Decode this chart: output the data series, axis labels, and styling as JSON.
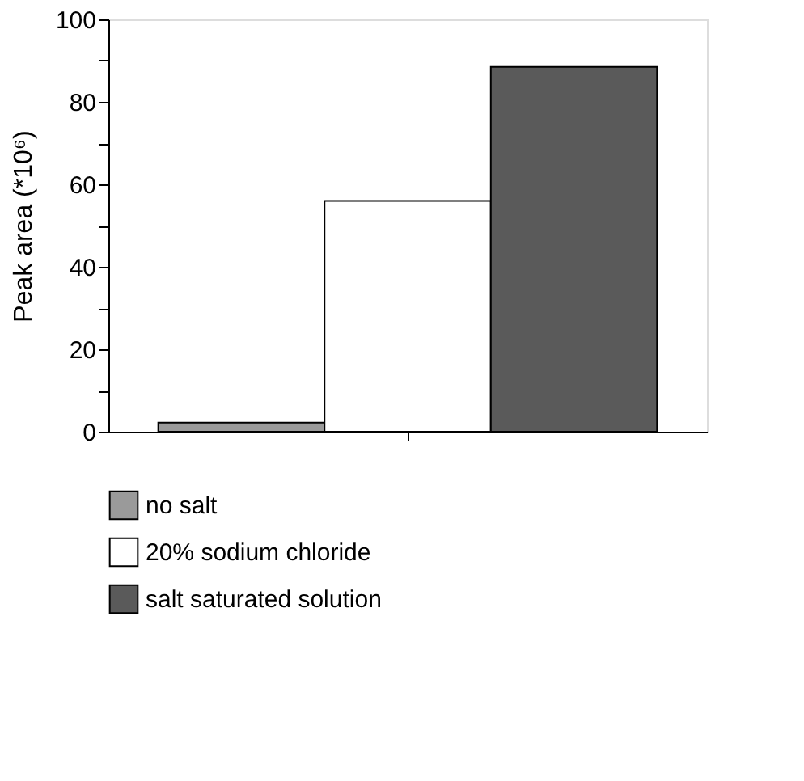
{
  "chart_data": {
    "type": "bar",
    "ylabel": "Peak area (*10⁶)",
    "categories": [
      null
    ],
    "series": [
      {
        "name": "no salt",
        "color": "#9a9a9a",
        "values": [
          2.2
        ]
      },
      {
        "name": "20% sodium chloride",
        "color": "#ffffff",
        "values": [
          56
        ]
      },
      {
        "name": "salt saturated solution",
        "color": "#5a5a5a",
        "values": [
          88.5
        ]
      }
    ],
    "ylim": [
      0,
      100
    ],
    "yticks": [
      0,
      {
        "value": 10,
        "label": null
      },
      20,
      {
        "value": 30,
        "label": null
      },
      40,
      {
        "value": 50,
        "label": null
      },
      60,
      {
        "value": 70,
        "label": null
      },
      80,
      {
        "value": 90,
        "label": null
      },
      100
    ],
    "tick_labels": "y",
    "grid": false,
    "legend": "bottom"
  }
}
